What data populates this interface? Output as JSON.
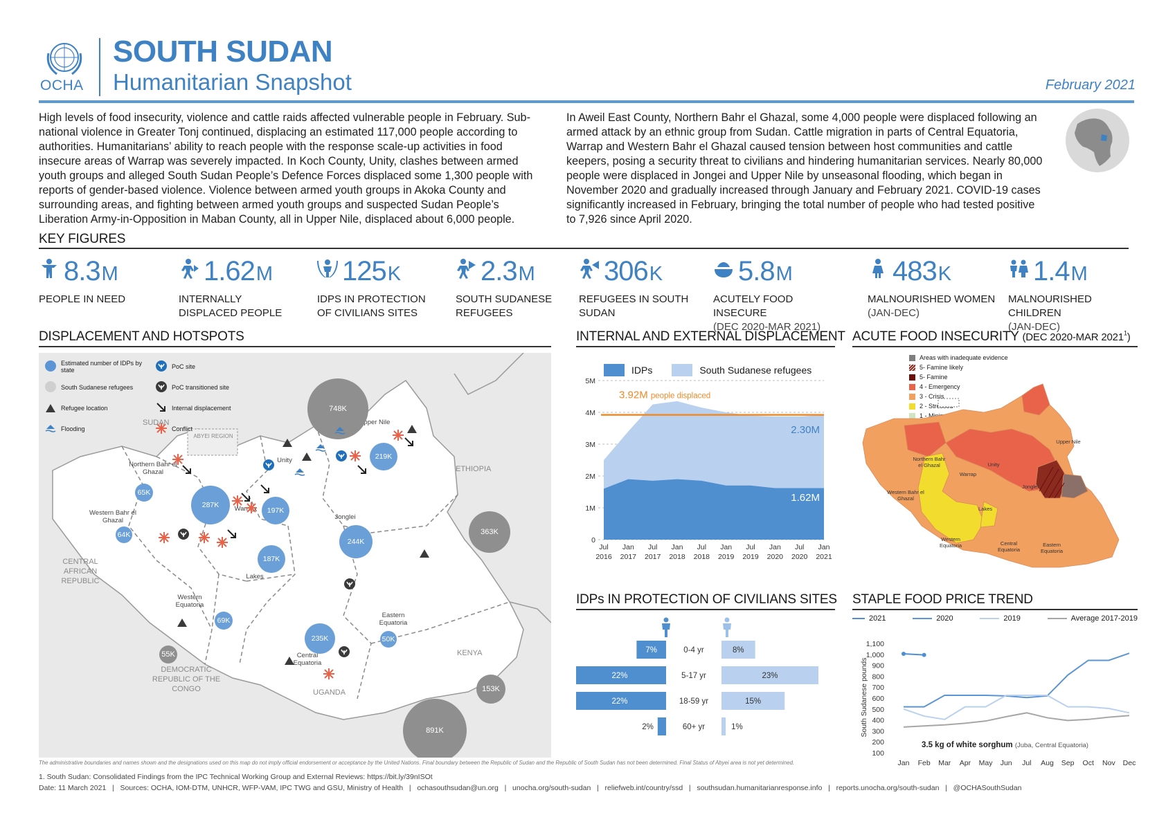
{
  "header": {
    "org": "OCHA",
    "title": "SOUTH SUDAN",
    "subtitle": "Humanitarian Snapshot",
    "date": "February 2021"
  },
  "intro": {
    "left": "High levels of food insecurity, violence and cattle raids affected vulnerable people in February. Sub-national violence in Greater Tonj continued, displacing an estimated 117,000 people according to authorities. Humanitarians’ ability to reach people with the response scale-up activities in food insecure areas of Warrap was severely impacted. In Koch County, Unity, clashes between armed youth groups and alleged South Sudan People’s Defence Forces displaced some 1,300 people with reports of gender-based violence. Violence between armed youth groups in Akoka County and surrounding areas, and fighting between armed youth groups and suspected Sudan People’s Liberation Army-in-Opposition in Maban County, all in Upper Nile, displaced about 6,000 people.",
    "right": "In Aweil East County, Northern Bahr el Ghazal, some 4,000 people were displaced following an armed attack by an ethnic group from Sudan. Cattle migration in parts of Central Equatoria, Warrap and Western Bahr el Ghazal caused tension between host communities and cattle keepers, posing a security threat to civilians and hindering humanitarian services. Nearly 80,000 people were displaced in Jongei and Upper Nile by unseasonal flooding, which began in November 2020 and gradually increased through January and February 2021. COVID-19 cases significantly increased in February, bringing the total number of people who had tested positive to 7,926 since April 2020."
  },
  "key_figures": {
    "title": "KEY FIGURES",
    "items": [
      {
        "value": "8.3",
        "unit": "M",
        "label": "PEOPLE IN NEED",
        "sub": "",
        "icon": "people-in-need-icon"
      },
      {
        "value": "1.62",
        "unit": "M",
        "label": "INTERNALLY DISPLACED PEOPLE",
        "sub": "",
        "icon": "idp-icon"
      },
      {
        "value": "125",
        "unit": "K",
        "label": "IDPs IN PROTECTION OF CIVILIANS SITES",
        "sub": "",
        "icon": "poc-icon"
      },
      {
        "value": "2.3",
        "unit": "M",
        "label": "SOUTH SUDANESE REFUGEES",
        "sub": "",
        "icon": "refugee-icon"
      },
      {
        "value": "306",
        "unit": "K",
        "label": "REFUGEES IN SOUTH SUDAN",
        "sub": "",
        "icon": "refugees-in-icon"
      },
      {
        "value": "5.8",
        "unit": "M",
        "label": "ACUTELY FOOD INSECURE",
        "sub": "(DEC 2020-MAR 2021)",
        "icon": "food-icon"
      },
      {
        "value": "483",
        "unit": "K",
        "label": "MALNOURISHED WOMEN",
        "sub": "(JAN-DEC)",
        "icon": "woman-icon"
      },
      {
        "value": "1.4",
        "unit": "M",
        "label": "MALNOURISHED CHILDREN",
        "sub": "(JAN-DEC)",
        "icon": "children-icon"
      }
    ]
  },
  "map": {
    "title": "DISPLACEMENT AND HOTSPOTS",
    "legend": [
      {
        "label": "Estimated number of IDPs by state",
        "icon": "idp-circle-icon"
      },
      {
        "label": "PoC site",
        "icon": "poc-site-icon"
      },
      {
        "label": "South Sudanese refugees",
        "icon": "refugee-circle-icon"
      },
      {
        "label": "PoC transitioned site",
        "icon": "poc-transitioned-icon"
      },
      {
        "label": "Refugee location",
        "icon": "refugee-location-icon"
      },
      {
        "label": "Internal displacement",
        "icon": "arrow-icon"
      },
      {
        "label": "Flooding",
        "icon": "flood-icon"
      },
      {
        "label": "Conflict",
        "icon": "conflict-icon"
      }
    ],
    "countries": [
      "SUDAN",
      "ETHIOPIA",
      "CENTRAL AFRICAN REPUBLIC",
      "DEMOCRATIC REPUBLIC OF THE CONGO",
      "UGANDA",
      "KENYA",
      "ABYEI REGION"
    ],
    "states": [
      "Upper Nile",
      "Unity",
      "Northern Bahr el Ghazal",
      "Western Bahr el Ghazal",
      "Warrap",
      "Jonglei",
      "Lakes",
      "Western Equatoria",
      "Central Equatoria",
      "Eastern Equatoria"
    ],
    "idp_bubbles": [
      "287K",
      "197K",
      "219K",
      "244K",
      "187K",
      "235K",
      "65K",
      "64K",
      "69K",
      "50K"
    ],
    "refugee_bubbles": [
      "748K",
      "363K",
      "55K",
      "153K",
      "891K"
    ],
    "disclaimer": "The administrative boundaries and names shown and the designations used on this map do not imply official endorsement or acceptance by the United Nations. Final boundary between the Republic of Sudan and the Republic of South Sudan has not been determined. Final Status of Abyei area is not yet determined."
  },
  "displacement_chart": {
    "title": "INTERNAL AND EXTERNAL DISPLACEMENT",
    "annotation_value": "3.92M",
    "annotation_text": "people displaced",
    "label_refugees": "2.30M",
    "label_idps": "1.62M",
    "colors": {
      "idps": "#4f8fd0",
      "refugees": "#b9d1ee",
      "line": "#f08a24"
    }
  },
  "chart_data": [
    {
      "type": "area",
      "title": "INTERNAL AND EXTERNAL DISPLACEMENT",
      "x": [
        "Jul 2016",
        "Jan 2017",
        "Jul 2017",
        "Jan 2018",
        "Jul 2018",
        "Jan 2019",
        "Jul 2019",
        "Jan 2020",
        "Jul 2020",
        "Jan 2021"
      ],
      "y_ticks": [
        "0",
        "1M",
        "2M",
        "3M",
        "4M",
        "5M"
      ],
      "ylim": [
        0,
        5
      ],
      "series": [
        {
          "name": "IDPs",
          "values": [
            1.6,
            1.9,
            1.85,
            1.9,
            1.85,
            1.7,
            1.7,
            1.62,
            1.62,
            1.62
          ]
        },
        {
          "name": "South Sudanese refugees",
          "values": [
            0.9,
            1.5,
            2.4,
            2.45,
            2.3,
            2.3,
            2.2,
            2.25,
            2.25,
            2.3
          ]
        }
      ],
      "reference_line": 3.92
    },
    {
      "type": "bar",
      "title": "IDPs IN PROTECTION OF CIVILIANS SITES",
      "categories": [
        "0-4 yr",
        "5-17 yr",
        "18-59 yr",
        "60+ yr"
      ],
      "series": [
        {
          "name": "Male",
          "values": [
            7,
            22,
            22,
            2
          ],
          "labels": [
            "7%",
            "22%",
            "22%",
            "2%"
          ]
        },
        {
          "name": "Female",
          "values": [
            8,
            23,
            15,
            1
          ],
          "labels": [
            "8%",
            "23%",
            "15%",
            "1%"
          ]
        }
      ]
    },
    {
      "type": "line",
      "title": "STAPLE FOOD PRICE TREND",
      "ylabel": "South Sudanese pounds",
      "x": [
        "Jan",
        "Feb",
        "Mar",
        "Apr",
        "May",
        "Jun",
        "Jul",
        "Aug",
        "Sep",
        "Oct",
        "Nov",
        "Dec"
      ],
      "y_ticks": [
        "100",
        "200",
        "300",
        "400",
        "500",
        "600",
        "700",
        "800",
        "900",
        "1,000",
        "1,100"
      ],
      "ylim": [
        100,
        1100
      ],
      "series": [
        {
          "name": "2021",
          "values": [
            1005,
            995,
            null,
            null,
            null,
            null,
            null,
            null,
            null,
            null,
            null,
            null
          ]
        },
        {
          "name": "2020",
          "values": [
            520,
            520,
            625,
            625,
            625,
            620,
            605,
            620,
            810,
            945,
            945,
            1010
          ]
        },
        {
          "name": "2019",
          "values": [
            500,
            435,
            405,
            520,
            520,
            625,
            625,
            625,
            520,
            520,
            505,
            465
          ]
        },
        {
          "name": "Average 2017-2019",
          "values": [
            335,
            345,
            355,
            370,
            390,
            430,
            465,
            420,
            395,
            405,
            425,
            440
          ]
        }
      ],
      "annotation": "3.5 kg of white sorghum",
      "annotation_sub": "(Juba, Central Equatoria)"
    }
  ],
  "poc_chart": {
    "title": "IDPs IN PROTECTION OF CIVILIANS SITES",
    "male_color": "#4f8fd0",
    "female_color": "#b9d1ee"
  },
  "food_map": {
    "title": "ACUTE FOOD INSECURITY",
    "title_sub": "(DEC 2020-MAR 2021",
    "title_sup": "1",
    "title_close": ")",
    "legend": [
      {
        "label": "Areas with inadequate evidence",
        "color": "#7f7f7f"
      },
      {
        "label": "5- Famine likely",
        "color": "#8b2b20"
      },
      {
        "label": "5- Famine",
        "color": "#6a0f0a"
      },
      {
        "label": "4 - Emergency",
        "color": "#e8634a"
      },
      {
        "label": "3 - Crisis",
        "color": "#f2a060"
      },
      {
        "label": "2 - Stressed",
        "color": "#f2dc2e"
      },
      {
        "label": "1 - Minimal",
        "color": "#cfe5c3"
      }
    ],
    "regions": [
      "Upper Nile",
      "Northern Bahr el Ghazal",
      "Unity",
      "Warrap",
      "Jonglei",
      "Western Bahr el Ghazal",
      "Lakes",
      "Western Equatoria",
      "Central Equatoria",
      "Eastern Equatoria"
    ]
  },
  "price_chart": {
    "title": "STAPLE FOOD PRICE TREND",
    "colors": {
      "2021": "#4f8fd0",
      "2020": "#5b95d5",
      "2019": "#b9d1ee",
      "avg": "#a6a6a6"
    }
  },
  "footer": {
    "note": "1. South Sudan: Consolidated Findings from the IPC Technical Working Group and External Reviews: https://bit.ly/39nISOt",
    "sources": "Date: 11 March 2021   |   Sources: OCHA, IOM-DTM, UNHCR, WFP-VAM, IPC TWG and GSU, Ministry of Health   |   ochasouthsudan@un.org   |   unocha.org/south-sudan   |   reliefweb.int/country/ssd   |   southsudan.humanitarianresponse.info   |   reports.unocha.org/south-sudan   |   @OCHASouthSudan"
  }
}
